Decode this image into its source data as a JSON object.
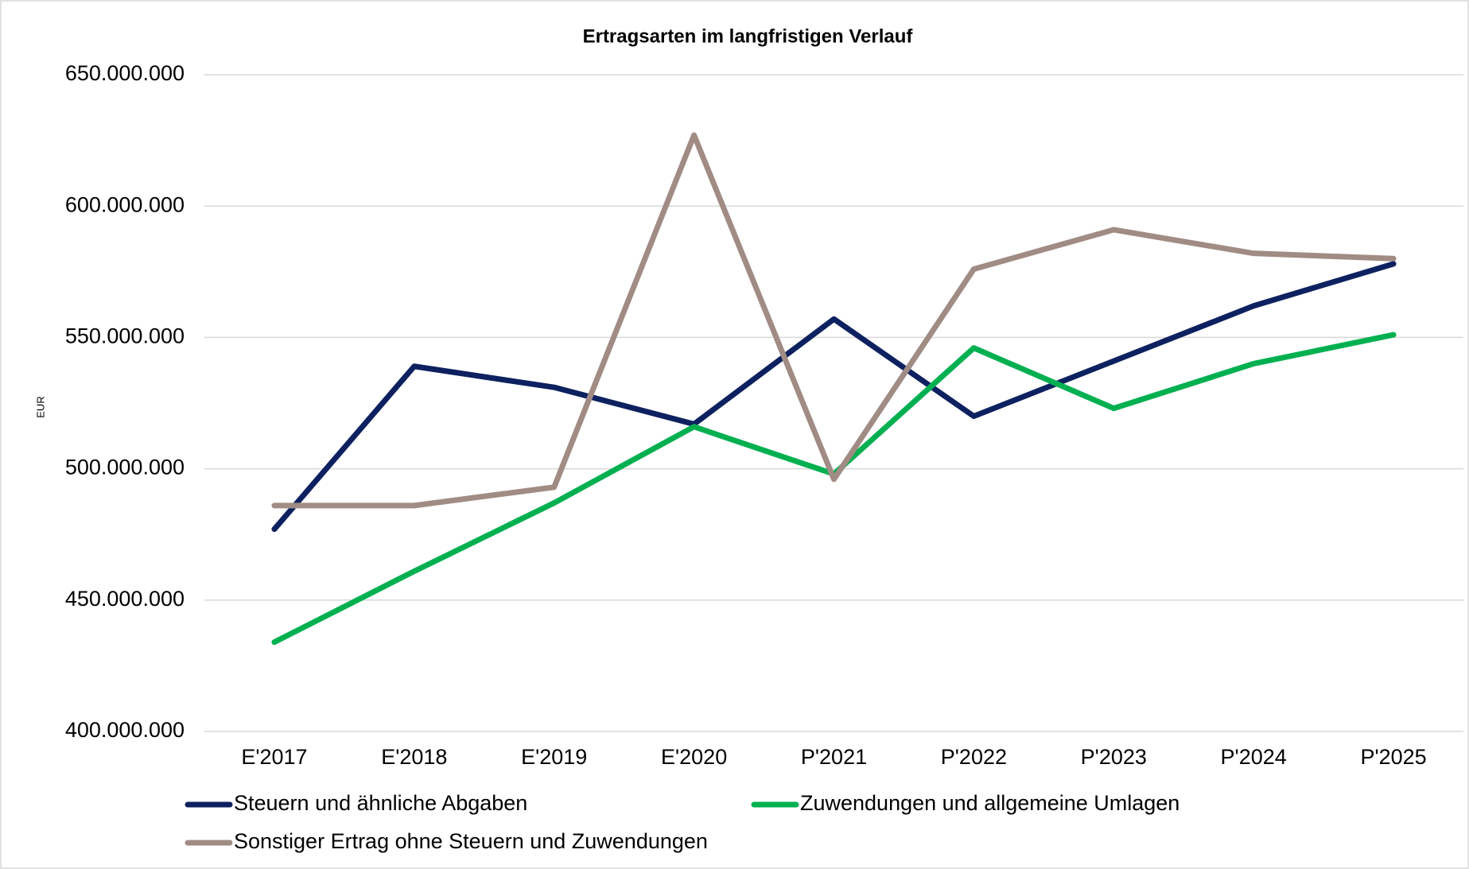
{
  "chart_data": {
    "type": "line",
    "title": "Ertragsarten im langfristigen Verlauf",
    "y_label": "EUR",
    "categories": [
      "E'2017",
      "E'2018",
      "E'2019",
      "E'2020",
      "P'2021",
      "P'2022",
      "P'2023",
      "P'2024",
      "P'2025"
    ],
    "series": [
      {
        "name": "Steuern und ähnliche Abgaben",
        "color": "#0d2160",
        "values": [
          477000000,
          539000000,
          531000000,
          517000000,
          557000000,
          520000000,
          541000000,
          562000000,
          578000000
        ]
      },
      {
        "name": "Zuwendungen und allgemeine Umlagen",
        "color": "#00b050",
        "values": [
          434000000,
          461000000,
          487000000,
          516000000,
          498000000,
          546000000,
          523000000,
          540000000,
          551000000
        ]
      },
      {
        "name": "Sonstiger Ertrag ohne Steuern und Zuwendungen",
        "color": "#a08c84",
        "values": [
          486000000,
          486000000,
          493000000,
          627000000,
          496000000,
          576000000,
          591000000,
          582000000,
          580000000
        ]
      }
    ],
    "ylim": [
      400000000,
      650000000
    ],
    "yticks": [
      {
        "value": 400000000,
        "label": "400.000.000"
      },
      {
        "value": 450000000,
        "label": "450.000.000"
      },
      {
        "value": 500000000,
        "label": "500.000.000"
      },
      {
        "value": 550000000,
        "label": "550.000.000"
      },
      {
        "value": 600000000,
        "label": "600.000.000"
      },
      {
        "value": 650000000,
        "label": "650.000.000"
      }
    ],
    "grid": true,
    "legend": "bottom"
  }
}
